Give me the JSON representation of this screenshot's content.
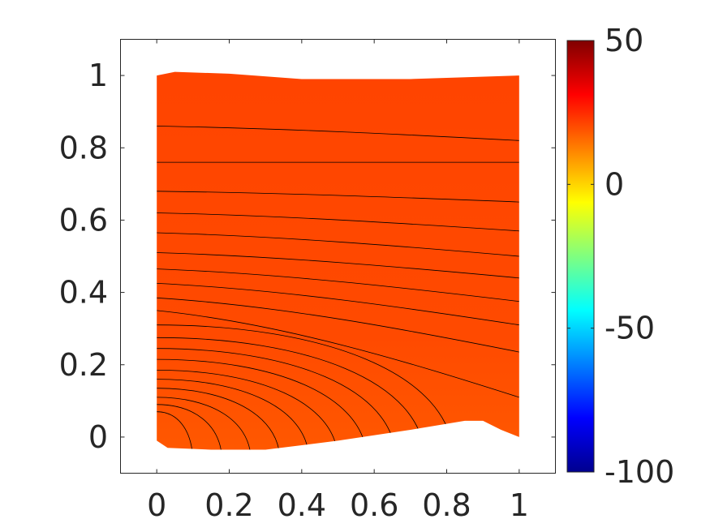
{
  "chart_data": {
    "type": "heatmap",
    "subtype": "filled-contour",
    "title": "",
    "xlabel": "",
    "ylabel": "",
    "xlim": [
      -0.1,
      1.1
    ],
    "ylim": [
      -0.1,
      1.1
    ],
    "x_ticks": [
      {
        "value": 0,
        "label": "0"
      },
      {
        "value": 0.2,
        "label": "0.2"
      },
      {
        "value": 0.4,
        "label": "0.4"
      },
      {
        "value": 0.6,
        "label": "0.6"
      },
      {
        "value": 0.8,
        "label": "0.8"
      },
      {
        "value": 1,
        "label": "1"
      }
    ],
    "y_ticks": [
      {
        "value": 0,
        "label": "0"
      },
      {
        "value": 0.2,
        "label": "0.2"
      },
      {
        "value": 0.4,
        "label": "0.4"
      },
      {
        "value": 0.6,
        "label": "0.6"
      },
      {
        "value": 0.8,
        "label": "0.8"
      },
      {
        "value": 1,
        "label": "1"
      }
    ],
    "grid": false,
    "colormap": "jet",
    "colorbar": {
      "range": [
        -100,
        50
      ],
      "ticks": [
        {
          "value": 50,
          "label": "50"
        },
        {
          "value": 0,
          "label": "0"
        },
        {
          "value": -50,
          "label": "-50"
        },
        {
          "value": -100,
          "label": "-100"
        }
      ]
    },
    "domain": {
      "top_edge": [
        [
          0,
          1.0
        ],
        [
          0.05,
          1.01
        ],
        [
          0.2,
          1.005
        ],
        [
          0.4,
          0.99
        ],
        [
          0.7,
          0.99
        ],
        [
          1.0,
          1.0
        ]
      ],
      "right_edge": [
        [
          1.0,
          1.0
        ],
        [
          1.0,
          0.0
        ]
      ],
      "bottom_edge": [
        [
          1.0,
          0.0
        ],
        [
          0.95,
          0.02
        ],
        [
          0.9,
          0.045
        ],
        [
          0.85,
          0.045
        ],
        [
          0.7,
          0.02
        ],
        [
          0.5,
          -0.01
        ],
        [
          0.3,
          -0.035
        ],
        [
          0.15,
          -0.035
        ],
        [
          0.03,
          -0.03
        ],
        [
          0.0,
          -0.01
        ]
      ],
      "left_edge": [
        [
          0.0,
          -0.01
        ],
        [
          0.0,
          1.0
        ]
      ]
    },
    "field_value_range": [
      25,
      30
    ],
    "fill_color_low": "#ff4400",
    "fill_color_mid": "#ff5a00",
    "contour_color": "#000000",
    "contours_left_end_y": [
      0.86,
      0.76,
      0.68,
      0.62,
      0.565,
      0.51,
      0.465,
      0.425,
      0.385,
      0.35,
      0.31,
      0.275,
      0.245,
      0.215,
      0.185,
      0.16,
      0.135,
      0.11,
      0.09,
      0.07,
      0.05
    ],
    "contours_right_end_y": [
      0.82,
      0.76,
      0.65,
      0.57,
      0.5,
      0.44,
      0.375,
      0.31,
      0.235,
      0.11
    ],
    "contours_bottom_end_x": [
      0.82,
      0.74,
      0.66,
      0.58,
      0.5,
      0.42,
      0.34,
      0.26,
      0.18,
      0.1
    ]
  }
}
